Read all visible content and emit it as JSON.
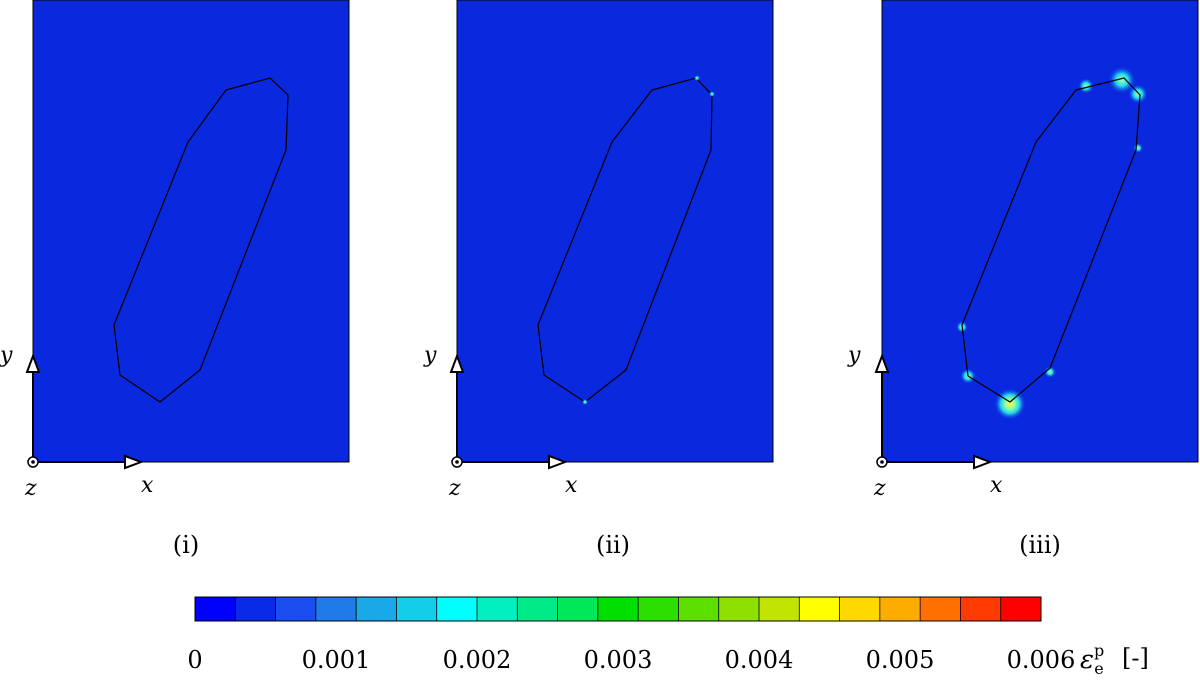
{
  "panels": [
    {
      "label": "(i)",
      "axis_x": "x",
      "axis_y": "y",
      "axis_z": "z"
    },
    {
      "label": "(ii)",
      "axis_x": "x",
      "axis_y": "y",
      "axis_z": "z"
    },
    {
      "label": "(iii)",
      "axis_x": "x",
      "axis_y": "y",
      "axis_z": "z"
    }
  ],
  "colorbar": {
    "ticks": [
      "0",
      "0.001",
      "0.002",
      "0.003",
      "0.004",
      "0.005",
      "0.006"
    ],
    "symbol": "ε",
    "superscript": "p",
    "subscript": "e",
    "unit": "[-]",
    "range": [
      0,
      0.006
    ],
    "colors": [
      "#0000ff",
      "#0a2ae8",
      "#1a4df0",
      "#1f7be8",
      "#1aa8e8",
      "#13cdea",
      "#00ffff",
      "#00f0c0",
      "#00ea8a",
      "#00e858",
      "#00e000",
      "#2be000",
      "#5de000",
      "#8ee000",
      "#c2e400",
      "#ffff00",
      "#ffd800",
      "#ffac00",
      "#ff7000",
      "#ff3a00",
      "#ff0000"
    ]
  },
  "field_color": "#0a28de"
}
